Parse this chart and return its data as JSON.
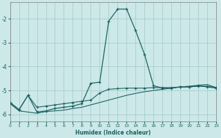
{
  "xlabel": "Humidex (Indice chaleur)",
  "background_color": "#cce8e8",
  "grid_color": "#aacccc",
  "line_color": "#1a6060",
  "line1_x": [
    0,
    1,
    2,
    3,
    4,
    5,
    6,
    7,
    8,
    9,
    10,
    11,
    12,
    13,
    14,
    15,
    16,
    17,
    18,
    19,
    20,
    21,
    22,
    23
  ],
  "line1_y": [
    -5.5,
    -5.8,
    -5.2,
    -5.9,
    -5.85,
    -5.75,
    -5.7,
    -5.65,
    -5.55,
    -4.7,
    -4.65,
    -2.1,
    -1.6,
    -1.6,
    -2.5,
    -3.5,
    -4.8,
    -4.9,
    -4.9,
    -4.85,
    -4.85,
    -4.8,
    -4.85,
    -4.9
  ],
  "line2_x": [
    0,
    1,
    2,
    3,
    4,
    5,
    6,
    7,
    8,
    9,
    10,
    11,
    12,
    13,
    14,
    15,
    16,
    17,
    18,
    19,
    20,
    21,
    22,
    23
  ],
  "line2_y": [
    -5.5,
    -5.8,
    -5.2,
    -5.7,
    -5.65,
    -5.6,
    -5.55,
    -5.5,
    -5.45,
    -5.4,
    -5.1,
    -4.95,
    -4.92,
    -4.9,
    -4.9,
    -4.9,
    -4.88,
    -4.88,
    -4.88,
    -4.85,
    -4.85,
    -4.82,
    -4.82,
    -4.88
  ],
  "line3_x": [
    0,
    1,
    2,
    3,
    4,
    5,
    6,
    7,
    8,
    9,
    10,
    11,
    12,
    13,
    14,
    15,
    16,
    17,
    18,
    19,
    20,
    21,
    22,
    23
  ],
  "line3_y": [
    -5.55,
    -5.85,
    -5.9,
    -5.95,
    -5.88,
    -5.85,
    -5.82,
    -5.75,
    -5.7,
    -5.6,
    -5.5,
    -5.4,
    -5.3,
    -5.2,
    -5.12,
    -5.05,
    -5.0,
    -4.95,
    -4.9,
    -4.85,
    -4.82,
    -4.78,
    -4.75,
    -4.88
  ],
  "ylim": [
    -6.3,
    -1.3
  ],
  "xlim": [
    0,
    23
  ],
  "yticks": [
    -6,
    -5,
    -4,
    -3,
    -2
  ],
  "xticks": [
    0,
    1,
    2,
    3,
    4,
    5,
    6,
    7,
    8,
    9,
    10,
    11,
    12,
    13,
    14,
    15,
    16,
    17,
    18,
    19,
    20,
    21,
    22,
    23
  ]
}
